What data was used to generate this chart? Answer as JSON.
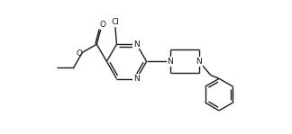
{
  "background": "#ffffff",
  "line_color": "#1a1a1a",
  "line_width": 1.0,
  "font_size": 6.5,
  "figsize": [
    3.24,
    1.49
  ],
  "dpi": 100,
  "xlim": [
    0,
    10.5
  ],
  "ylim": [
    0,
    4.5
  ]
}
